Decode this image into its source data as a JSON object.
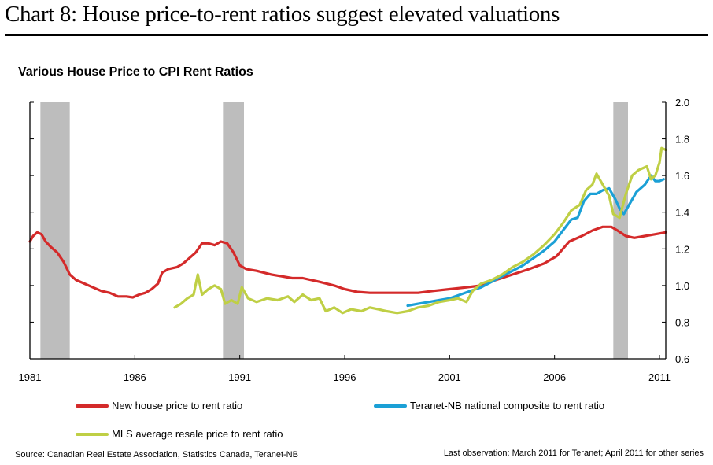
{
  "page": {
    "title": "Chart 8: House price-to-rent ratios suggest elevated valuations"
  },
  "chart_data": {
    "type": "line",
    "title": "Various House Price to CPI Rent Ratios",
    "xlabel": "",
    "ylabel": "",
    "xlim": [
      1981,
      2011.3
    ],
    "ylim": [
      0.6,
      2.0
    ],
    "y_axis_side": "right",
    "x_ticks": [
      1981,
      1986,
      1991,
      1996,
      2001,
      2006,
      2011
    ],
    "x_tick_labels": [
      "1981",
      "1986",
      "1991",
      "1996",
      "2001",
      "2006",
      "2011"
    ],
    "y_ticks": [
      0.6,
      0.8,
      1.0,
      1.2,
      1.4,
      1.6,
      1.8,
      2.0
    ],
    "y_tick_labels": [
      "0.6",
      "0.8",
      "1.0",
      "1.2",
      "1.4",
      "1.6",
      "1.8",
      "2.0"
    ],
    "grid": false,
    "legend_position": "bottom",
    "shaded_periods": [
      {
        "label": "recession",
        "start": 1981.5,
        "end": 1982.9
      },
      {
        "label": "recession",
        "start": 1990.2,
        "end": 1991.2
      },
      {
        "label": "recession",
        "start": 2008.8,
        "end": 2009.5
      }
    ],
    "series": [
      {
        "name": "New house price to rent ratio",
        "color": "#d42a2a",
        "points": [
          [
            1981.0,
            1.24
          ],
          [
            1981.15,
            1.27
          ],
          [
            1981.35,
            1.29
          ],
          [
            1981.55,
            1.28
          ],
          [
            1981.75,
            1.24
          ],
          [
            1982.0,
            1.21
          ],
          [
            1982.3,
            1.18
          ],
          [
            1982.6,
            1.13
          ],
          [
            1982.9,
            1.06
          ],
          [
            1983.2,
            1.03
          ],
          [
            1983.6,
            1.01
          ],
          [
            1984.0,
            0.99
          ],
          [
            1984.4,
            0.97
          ],
          [
            1984.8,
            0.96
          ],
          [
            1985.2,
            0.94
          ],
          [
            1985.6,
            0.94
          ],
          [
            1985.9,
            0.935
          ],
          [
            1986.2,
            0.95
          ],
          [
            1986.5,
            0.96
          ],
          [
            1986.8,
            0.98
          ],
          [
            1987.1,
            1.01
          ],
          [
            1987.3,
            1.07
          ],
          [
            1987.6,
            1.09
          ],
          [
            1988.0,
            1.1
          ],
          [
            1988.3,
            1.12
          ],
          [
            1988.6,
            1.15
          ],
          [
            1988.9,
            1.18
          ],
          [
            1989.2,
            1.23
          ],
          [
            1989.5,
            1.23
          ],
          [
            1989.8,
            1.22
          ],
          [
            1990.1,
            1.24
          ],
          [
            1990.4,
            1.23
          ],
          [
            1990.7,
            1.18
          ],
          [
            1991.0,
            1.11
          ],
          [
            1991.3,
            1.09
          ],
          [
            1991.8,
            1.08
          ],
          [
            1992.5,
            1.06
          ],
          [
            1993.0,
            1.05
          ],
          [
            1993.5,
            1.04
          ],
          [
            1994.0,
            1.04
          ],
          [
            1994.8,
            1.02
          ],
          [
            1995.5,
            1.0
          ],
          [
            1996.0,
            0.98
          ],
          [
            1996.6,
            0.965
          ],
          [
            1997.2,
            0.96
          ],
          [
            1998.0,
            0.96
          ],
          [
            1998.8,
            0.96
          ],
          [
            1999.5,
            0.96
          ],
          [
            2000.2,
            0.97
          ],
          [
            2001.0,
            0.98
          ],
          [
            2001.8,
            0.99
          ],
          [
            2002.5,
            1.0
          ],
          [
            2003.2,
            1.03
          ],
          [
            2004.0,
            1.06
          ],
          [
            2004.8,
            1.09
          ],
          [
            2005.5,
            1.12
          ],
          [
            2006.1,
            1.16
          ],
          [
            2006.7,
            1.24
          ],
          [
            2007.3,
            1.27
          ],
          [
            2007.8,
            1.3
          ],
          [
            2008.3,
            1.32
          ],
          [
            2008.7,
            1.32
          ],
          [
            2009.0,
            1.3
          ],
          [
            2009.4,
            1.27
          ],
          [
            2009.8,
            1.26
          ],
          [
            2010.3,
            1.27
          ],
          [
            2010.8,
            1.28
          ],
          [
            2011.3,
            1.29
          ]
        ]
      },
      {
        "name": "Teranet-NB national composite to rent ratio",
        "color": "#1ba0d6",
        "points": [
          [
            1999.0,
            0.89
          ],
          [
            1999.5,
            0.9
          ],
          [
            2000.0,
            0.91
          ],
          [
            2000.5,
            0.92
          ],
          [
            2001.0,
            0.93
          ],
          [
            2001.5,
            0.95
          ],
          [
            2002.0,
            0.97
          ],
          [
            2002.5,
            0.99
          ],
          [
            2003.0,
            1.02
          ],
          [
            2003.5,
            1.05
          ],
          [
            2004.0,
            1.08
          ],
          [
            2004.5,
            1.11
          ],
          [
            2005.0,
            1.15
          ],
          [
            2005.5,
            1.19
          ],
          [
            2006.0,
            1.24
          ],
          [
            2006.4,
            1.3
          ],
          [
            2006.8,
            1.36
          ],
          [
            2007.1,
            1.37
          ],
          [
            2007.4,
            1.46
          ],
          [
            2007.7,
            1.5
          ],
          [
            2008.0,
            1.5
          ],
          [
            2008.3,
            1.52
          ],
          [
            2008.6,
            1.53
          ],
          [
            2008.9,
            1.47
          ],
          [
            2009.1,
            1.42
          ],
          [
            2009.3,
            1.39
          ],
          [
            2009.6,
            1.45
          ],
          [
            2009.9,
            1.51
          ],
          [
            2010.3,
            1.55
          ],
          [
            2010.6,
            1.6
          ],
          [
            2010.8,
            1.57
          ],
          [
            2011.0,
            1.57
          ],
          [
            2011.2,
            1.58
          ]
        ]
      },
      {
        "name": "MLS average resale price to rent ratio",
        "color": "#bfcf45",
        "points": [
          [
            1987.9,
            0.88
          ],
          [
            1988.2,
            0.9
          ],
          [
            1988.5,
            0.93
          ],
          [
            1988.8,
            0.95
          ],
          [
            1989.0,
            1.06
          ],
          [
            1989.2,
            0.95
          ],
          [
            1989.5,
            0.98
          ],
          [
            1989.8,
            1.0
          ],
          [
            1990.1,
            0.98
          ],
          [
            1990.3,
            0.9
          ],
          [
            1990.6,
            0.92
          ],
          [
            1990.9,
            0.9
          ],
          [
            1991.1,
            0.99
          ],
          [
            1991.4,
            0.93
          ],
          [
            1991.8,
            0.91
          ],
          [
            1992.3,
            0.93
          ],
          [
            1992.8,
            0.92
          ],
          [
            1993.3,
            0.94
          ],
          [
            1993.6,
            0.91
          ],
          [
            1994.0,
            0.95
          ],
          [
            1994.4,
            0.92
          ],
          [
            1994.8,
            0.93
          ],
          [
            1995.1,
            0.86
          ],
          [
            1995.5,
            0.88
          ],
          [
            1995.9,
            0.85
          ],
          [
            1996.3,
            0.87
          ],
          [
            1996.8,
            0.86
          ],
          [
            1997.2,
            0.88
          ],
          [
            1997.6,
            0.87
          ],
          [
            1998.0,
            0.86
          ],
          [
            1998.5,
            0.85
          ],
          [
            1999.0,
            0.86
          ],
          [
            1999.5,
            0.88
          ],
          [
            2000.0,
            0.89
          ],
          [
            2000.5,
            0.91
          ],
          [
            2001.0,
            0.92
          ],
          [
            2001.4,
            0.93
          ],
          [
            2001.8,
            0.91
          ],
          [
            2002.1,
            0.97
          ],
          [
            2002.5,
            1.01
          ],
          [
            2003.0,
            1.03
          ],
          [
            2003.5,
            1.06
          ],
          [
            2004.0,
            1.1
          ],
          [
            2004.5,
            1.13
          ],
          [
            2005.0,
            1.17
          ],
          [
            2005.5,
            1.22
          ],
          [
            2006.0,
            1.28
          ],
          [
            2006.4,
            1.34
          ],
          [
            2006.8,
            1.41
          ],
          [
            2007.2,
            1.44
          ],
          [
            2007.5,
            1.52
          ],
          [
            2007.8,
            1.55
          ],
          [
            2008.0,
            1.61
          ],
          [
            2008.3,
            1.55
          ],
          [
            2008.6,
            1.49
          ],
          [
            2008.8,
            1.39
          ],
          [
            2009.1,
            1.37
          ],
          [
            2009.4,
            1.5
          ],
          [
            2009.7,
            1.6
          ],
          [
            2010.0,
            1.63
          ],
          [
            2010.4,
            1.65
          ],
          [
            2010.6,
            1.58
          ],
          [
            2010.8,
            1.6
          ],
          [
            2011.0,
            1.67
          ],
          [
            2011.1,
            1.75
          ],
          [
            2011.3,
            1.74
          ]
        ]
      }
    ]
  },
  "legend": [
    {
      "label": "New house price to rent ratio",
      "color": "#d42a2a"
    },
    {
      "label": "Teranet-NB national composite to rent ratio",
      "color": "#1ba0d6"
    },
    {
      "label": "MLS average resale price to rent ratio",
      "color": "#bfcf45"
    }
  ],
  "footer": {
    "source": "Source: Canadian Real Estate Association, Statistics Canada, Teranet-NB",
    "last_observation": "Last observation: March 2011 for Teranet; April 2011 for other series"
  }
}
